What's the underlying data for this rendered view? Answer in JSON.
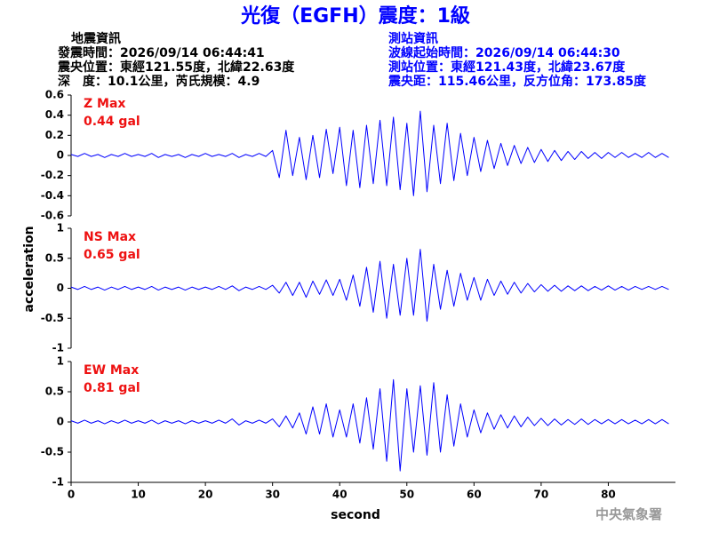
{
  "title": "光復（EGFH）震度：1級",
  "info_left": [
    "地震資訊",
    "發震時間：2026/09/14 06:44:41",
    "震央位置：東經121.55度，北緯22.63度",
    "深　度：10.1公里，芮氏規模：4.9"
  ],
  "info_right": [
    "測站資訊",
    "波線起始時間：2026/09/14 06:44:30",
    "測站位置：東經121.43度，北緯23.67度",
    "震央距：115.46公里，反方位角：173.85度"
  ],
  "ylabel": "acceleration",
  "watermark": "中央氣象署",
  "chart_data": [
    {
      "type": "line",
      "annotation": [
        "Z Max",
        "0.44 gal"
      ],
      "color": "#0000ff",
      "xlim": [
        0,
        90
      ],
      "ylim": [
        -0.6,
        0.6
      ],
      "yticks": [
        -0.6,
        -0.4,
        -0.2,
        0,
        0.2,
        0.4,
        0.6
      ],
      "x": [
        0,
        1,
        2,
        3,
        4,
        5,
        6,
        7,
        8,
        9,
        10,
        11,
        12,
        13,
        14,
        15,
        16,
        17,
        18,
        19,
        20,
        21,
        22,
        23,
        24,
        25,
        26,
        27,
        28,
        29,
        30,
        31,
        32,
        33,
        34,
        35,
        36,
        37,
        38,
        39,
        40,
        41,
        42,
        43,
        44,
        45,
        46,
        47,
        48,
        49,
        50,
        51,
        52,
        53,
        54,
        55,
        56,
        57,
        58,
        59,
        60,
        61,
        62,
        63,
        64,
        65,
        66,
        67,
        68,
        69,
        70,
        71,
        72,
        73,
        74,
        75,
        76,
        77,
        78,
        79,
        80,
        81,
        82,
        83,
        84,
        85,
        86,
        87,
        88,
        89
      ],
      "values": [
        0.01,
        -0.01,
        0.02,
        -0.01,
        0.01,
        -0.02,
        0.01,
        -0.01,
        0.02,
        -0.01,
        0.01,
        -0.01,
        0.02,
        -0.02,
        0.01,
        -0.01,
        0.01,
        -0.02,
        0.01,
        -0.01,
        0.02,
        -0.01,
        0.01,
        -0.01,
        0.02,
        -0.02,
        0.01,
        -0.01,
        0.02,
        -0.01,
        0.05,
        -0.22,
        0.25,
        -0.2,
        0.18,
        -0.24,
        0.2,
        -0.22,
        0.26,
        -0.18,
        0.28,
        -0.3,
        0.25,
        -0.32,
        0.3,
        -0.28,
        0.35,
        -0.3,
        0.38,
        -0.34,
        0.32,
        -0.4,
        0.44,
        -0.36,
        0.3,
        -0.28,
        0.32,
        -0.25,
        0.22,
        -0.2,
        0.18,
        -0.16,
        0.15,
        -0.13,
        0.12,
        -0.1,
        0.1,
        -0.08,
        0.08,
        -0.07,
        0.06,
        -0.06,
        0.05,
        -0.05,
        0.04,
        -0.04,
        0.04,
        -0.03,
        0.03,
        -0.03,
        0.03,
        -0.02,
        0.03,
        -0.02,
        0.02,
        -0.02,
        0.03,
        -0.02,
        0.02,
        -0.02
      ]
    },
    {
      "type": "line",
      "annotation": [
        "NS Max",
        "0.65 gal"
      ],
      "color": "#0000ff",
      "xlim": [
        0,
        90
      ],
      "ylim": [
        -1,
        1
      ],
      "yticks": [
        -1,
        -0.5,
        0,
        0.5,
        1
      ],
      "x": [
        0,
        1,
        2,
        3,
        4,
        5,
        6,
        7,
        8,
        9,
        10,
        11,
        12,
        13,
        14,
        15,
        16,
        17,
        18,
        19,
        20,
        21,
        22,
        23,
        24,
        25,
        26,
        27,
        28,
        29,
        30,
        31,
        32,
        33,
        34,
        35,
        36,
        37,
        38,
        39,
        40,
        41,
        42,
        43,
        44,
        45,
        46,
        47,
        48,
        49,
        50,
        51,
        52,
        53,
        54,
        55,
        56,
        57,
        58,
        59,
        60,
        61,
        62,
        63,
        64,
        65,
        66,
        67,
        68,
        69,
        70,
        71,
        72,
        73,
        74,
        75,
        76,
        77,
        78,
        79,
        80,
        81,
        82,
        83,
        84,
        85,
        86,
        87,
        88,
        89
      ],
      "values": [
        0.02,
        -0.02,
        0.03,
        -0.02,
        0.02,
        -0.03,
        0.02,
        -0.02,
        0.03,
        -0.02,
        0.02,
        -0.02,
        0.03,
        -0.03,
        0.02,
        -0.02,
        0.02,
        -0.03,
        0.02,
        -0.02,
        0.02,
        -0.02,
        0.03,
        -0.02,
        0.04,
        -0.04,
        0.02,
        -0.02,
        0.03,
        -0.02,
        0.05,
        -0.08,
        0.1,
        -0.12,
        0.1,
        -0.15,
        0.12,
        -0.1,
        0.14,
        -0.12,
        0.15,
        -0.2,
        0.22,
        -0.3,
        0.35,
        -0.4,
        0.45,
        -0.5,
        0.4,
        -0.45,
        0.5,
        -0.45,
        0.65,
        -0.55,
        0.4,
        -0.35,
        0.3,
        -0.3,
        0.25,
        -0.2,
        0.18,
        -0.2,
        0.15,
        -0.12,
        0.12,
        -0.1,
        0.1,
        -0.08,
        0.08,
        -0.06,
        0.06,
        -0.05,
        0.05,
        -0.05,
        0.04,
        -0.04,
        0.04,
        -0.04,
        0.03,
        -0.03,
        0.04,
        -0.03,
        0.03,
        -0.03,
        0.03,
        -0.02,
        0.03,
        -0.02,
        0.03,
        -0.02
      ]
    },
    {
      "type": "line",
      "annotation": [
        "EW Max",
        "0.81 gal"
      ],
      "color": "#0000ff",
      "xlabel": "second",
      "xlim": [
        0,
        90
      ],
      "xticks": [
        0,
        10,
        20,
        30,
        40,
        50,
        60,
        70,
        80
      ],
      "ylim": [
        -1,
        1
      ],
      "yticks": [
        -1,
        -0.5,
        0,
        0.5,
        1
      ],
      "x": [
        0,
        1,
        2,
        3,
        4,
        5,
        6,
        7,
        8,
        9,
        10,
        11,
        12,
        13,
        14,
        15,
        16,
        17,
        18,
        19,
        20,
        21,
        22,
        23,
        24,
        25,
        26,
        27,
        28,
        29,
        30,
        31,
        32,
        33,
        34,
        35,
        36,
        37,
        38,
        39,
        40,
        41,
        42,
        43,
        44,
        45,
        46,
        47,
        48,
        49,
        50,
        51,
        52,
        53,
        54,
        55,
        56,
        57,
        58,
        59,
        60,
        61,
        62,
        63,
        64,
        65,
        66,
        67,
        68,
        69,
        70,
        71,
        72,
        73,
        74,
        75,
        76,
        77,
        78,
        79,
        80,
        81,
        82,
        83,
        84,
        85,
        86,
        87,
        88,
        89
      ],
      "values": [
        0.02,
        -0.02,
        0.03,
        -0.02,
        0.02,
        -0.03,
        0.02,
        -0.02,
        0.03,
        -0.02,
        0.02,
        -0.02,
        0.03,
        -0.03,
        0.02,
        -0.02,
        0.02,
        -0.03,
        0.02,
        -0.02,
        0.02,
        -0.02,
        0.03,
        -0.02,
        0.05,
        -0.05,
        0.02,
        -0.02,
        0.03,
        -0.02,
        0.05,
        -0.08,
        0.1,
        -0.1,
        0.15,
        -0.2,
        0.25,
        -0.2,
        0.3,
        -0.25,
        0.2,
        -0.25,
        0.3,
        -0.35,
        0.4,
        -0.45,
        0.55,
        -0.65,
        0.7,
        -0.81,
        0.55,
        -0.5,
        0.6,
        -0.55,
        0.65,
        -0.5,
        0.45,
        -0.4,
        0.3,
        -0.25,
        0.2,
        -0.18,
        0.15,
        -0.12,
        0.12,
        -0.1,
        0.1,
        -0.08,
        0.08,
        -0.06,
        0.06,
        -0.06,
        0.05,
        -0.05,
        0.04,
        -0.04,
        0.05,
        -0.04,
        0.04,
        -0.03,
        0.04,
        -0.03,
        0.04,
        -0.03,
        0.03,
        -0.03,
        0.04,
        -0.03,
        0.04,
        -0.03
      ]
    }
  ]
}
